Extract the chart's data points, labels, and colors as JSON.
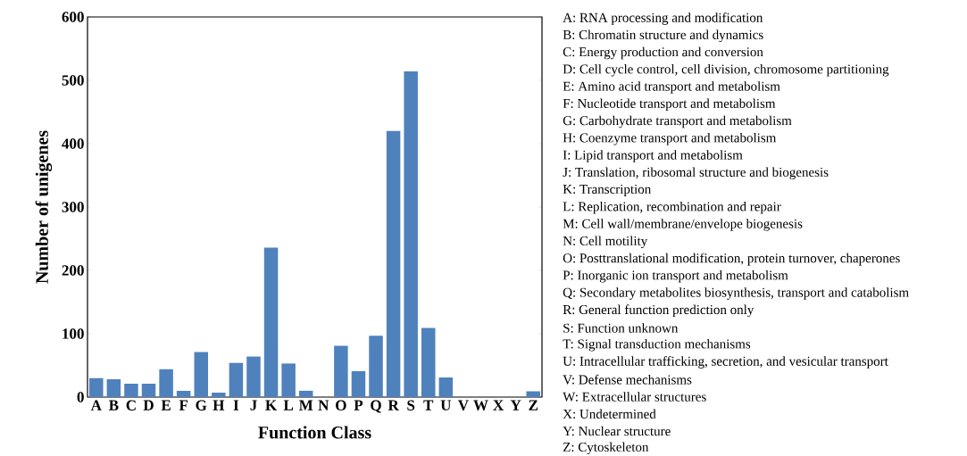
{
  "chart_data": {
    "type": "bar",
    "xlabel": "Function Class",
    "ylabel": "Number of unigenes",
    "categories": [
      "A",
      "B",
      "C",
      "D",
      "E",
      "F",
      "G",
      "H",
      "I",
      "J",
      "K",
      "L",
      "M",
      "N",
      "O",
      "P",
      "Q",
      "R",
      "S",
      "T",
      "U",
      "V",
      "W",
      "X",
      "Y",
      "Z"
    ],
    "values": [
      30,
      28,
      21,
      21,
      44,
      10,
      71,
      7,
      54,
      64,
      236,
      53,
      10,
      0,
      81,
      41,
      97,
      420,
      514,
      109,
      31,
      0,
      0,
      0,
      0,
      9
    ],
    "color": "#4f81bd",
    "ylim": [
      0,
      600
    ],
    "yticks": [
      0,
      100,
      200,
      300,
      400,
      500,
      600
    ],
    "grid": false,
    "annotations": [
      "A: RNA processing and modification",
      "B: Chromatin structure and dynamics",
      "C: Energy production and conversion",
      "D: Cell cycle control, cell division, chromosome partitioning",
      "E: Amino acid transport and metabolism",
      "F: Nucleotide transport and metabolism",
      "G: Carbohydrate transport and metabolism",
      "H: Coenzyme transport and metabolism",
      "I: Lipid transport and metabolism",
      "J: Translation, ribosomal structure and biogenesis",
      "K: Transcription",
      "L: Replication, recombination and repair",
      "M: Cell wall/membrane/envelope biogenesis",
      "N: Cell motility",
      "O: Posttranslational modification, protein turnover, chaperones",
      "P: Inorganic ion transport and metabolism",
      "Q: Secondary metabolites biosynthesis, transport and catabolism",
      "R: General function prediction only",
      "S: Function unknown",
      "T: Signal transduction mechanisms",
      "U: Intracellular trafficking, secretion, and vesicular transport",
      "V: Defense mechanisms",
      "W: Extracellular structures",
      "X: Undetermined",
      "Y: Nuclear structure",
      "Z: Cytoskeleton"
    ]
  }
}
